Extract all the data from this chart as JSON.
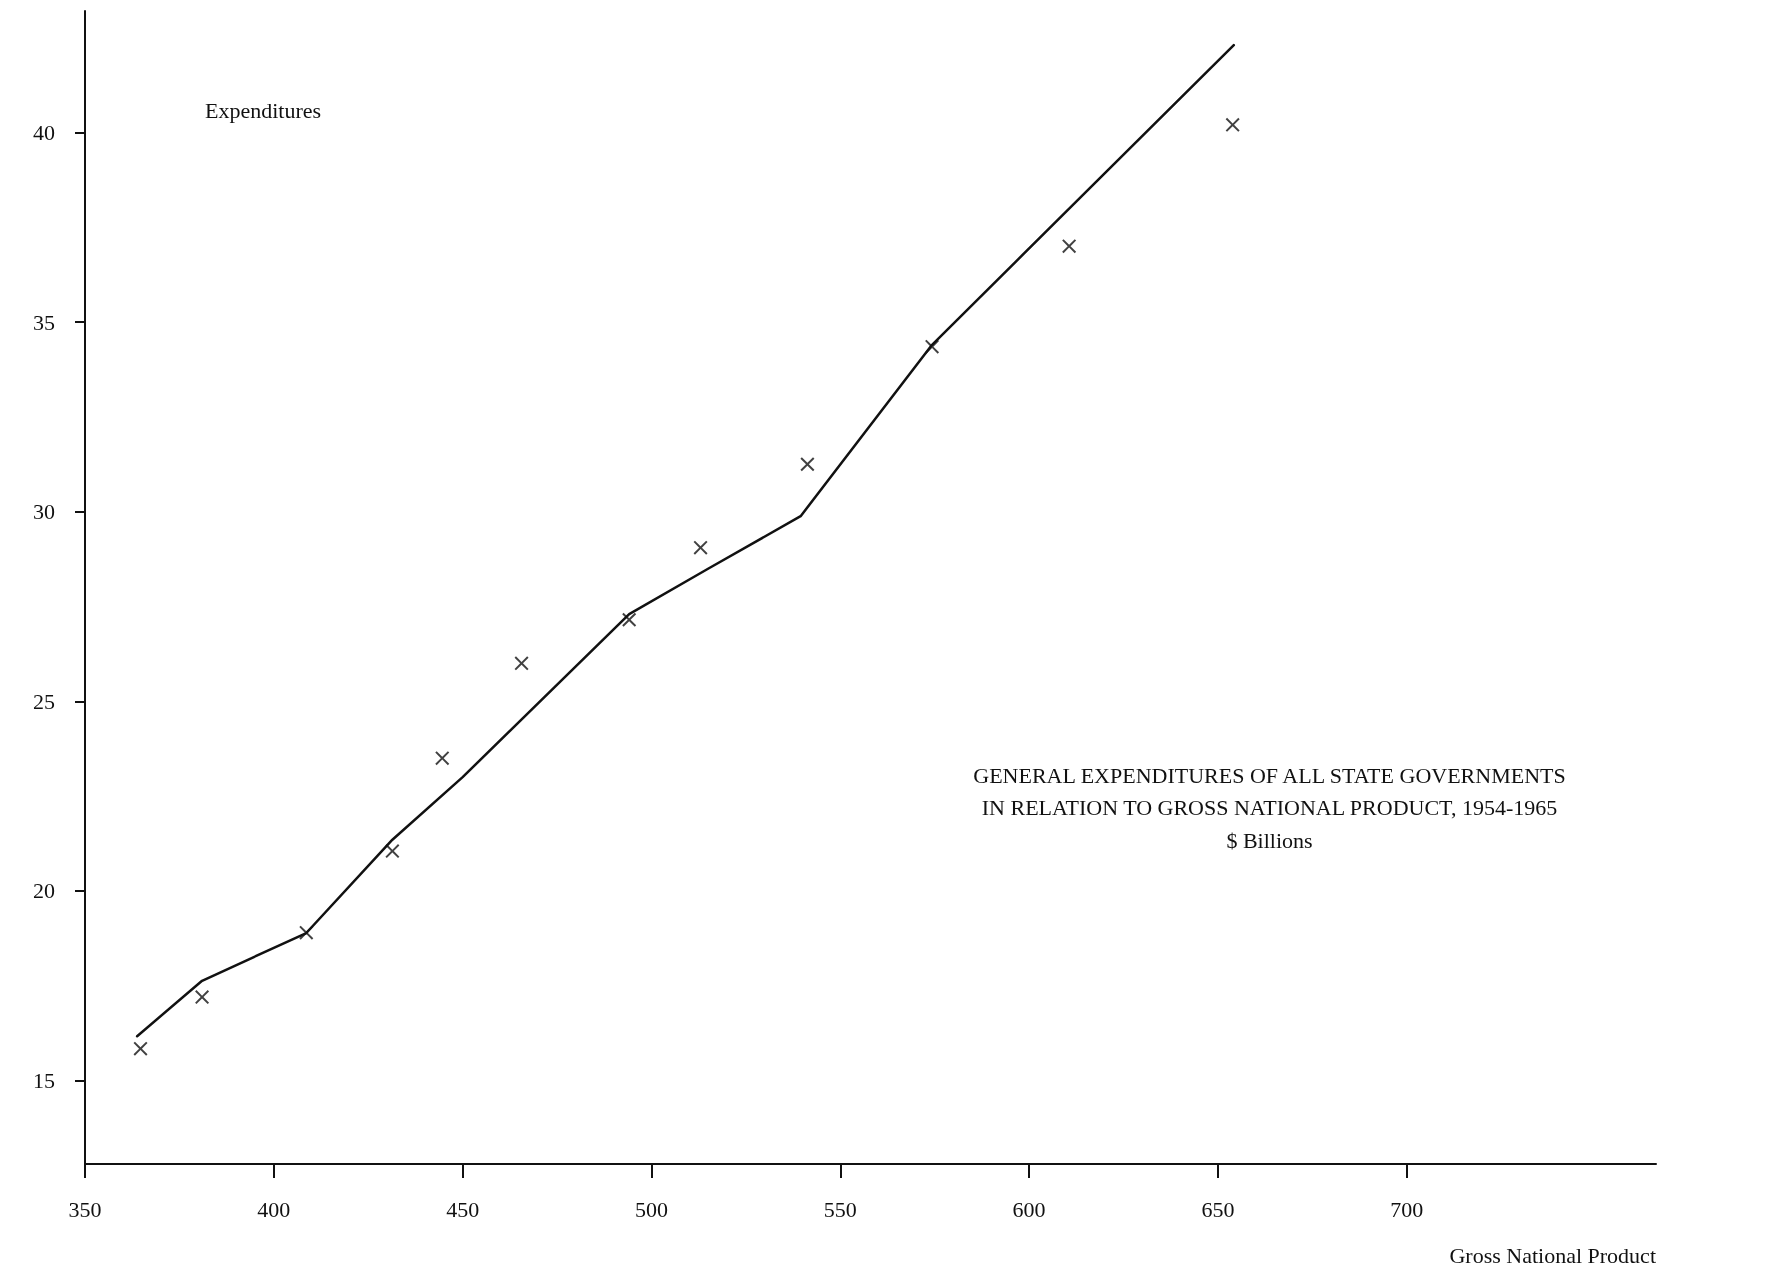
{
  "chart_data": {
    "type": "scatter",
    "title": "GENERAL EXPENDITURES OF ALL STATE GOVERNMENTS\nIN RELATION TO GROSS NATIONAL PRODUCT, 1954-1965",
    "subtitle": "$ Billions",
    "xlabel": "Gross National Product",
    "ylabel": "Expenditures",
    "series": [
      {
        "color": "#111111",
        "marker": "cross",
        "x": [
          364.7,
          381,
          408.6,
          431.4,
          444.6,
          465.6,
          494.1,
          513,
          541.3,
          574.3,
          610.6,
          653.9
        ],
        "values": [
          15.84,
          17.2,
          18.9,
          21.05,
          23.5,
          26.0,
          27.15,
          29.05,
          31.25,
          34.35,
          37.0,
          40.2
        ]
      },
      {
        "type": "line",
        "color": "#111111",
        "marker": "none",
        "line_style": "solid",
        "x": [
          363.8,
          381,
          408.6,
          431.4,
          450,
          494.1,
          515.1,
          539.5,
          574.3,
          654.2
        ],
        "values": [
          16.17,
          17.63,
          18.89,
          21.35,
          23.0,
          27.3,
          28.5,
          29.88,
          34.4,
          42.3
        ]
      }
    ],
    "xlim": [
      350,
      766
    ],
    "xticks": [
      350,
      400,
      450,
      500,
      550,
      600,
      650,
      700
    ],
    "ylim": [
      12.8,
      43.2
    ],
    "yticks": [
      15,
      20,
      25,
      30,
      35,
      40
    ],
    "grid": false
  }
}
